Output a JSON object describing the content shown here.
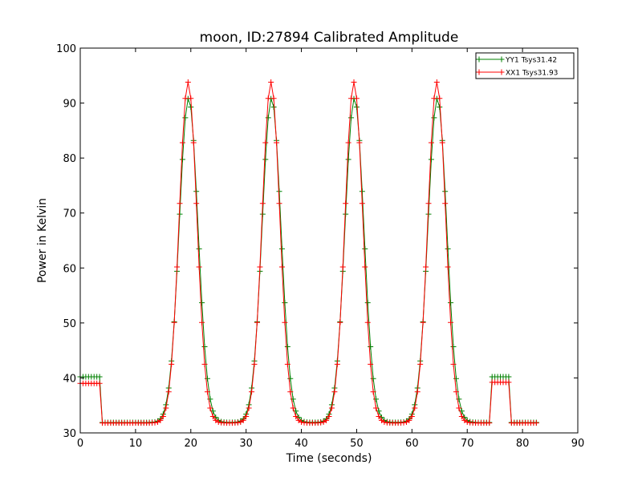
{
  "chart_data": {
    "type": "line",
    "title": "moon, ID:27894 Calibrated Amplitude",
    "xlabel": "Time (seconds)",
    "ylabel": "Power in Kelvin",
    "xlim": [
      0,
      90
    ],
    "ylim": [
      30,
      100
    ],
    "x_ticks": [
      0,
      10,
      20,
      30,
      40,
      50,
      60,
      70,
      80,
      90
    ],
    "y_ticks": [
      30,
      40,
      50,
      60,
      70,
      80,
      90,
      100
    ],
    "grid": false,
    "legend_position": "top-right",
    "sample_interval_s": 0.5,
    "series": [
      {
        "name": "YY1 Tsys31.42",
        "color": "#008000",
        "marker": "plus",
        "segments": [
          {
            "start": 0.0,
            "end": 4.0,
            "level": 40.2
          },
          {
            "start": 4.0,
            "end": 74.5,
            "level": 31.9
          },
          {
            "start": 74.5,
            "end": 78.0,
            "level": 40.2
          },
          {
            "start": 78.0,
            "end": 82.5,
            "level": 31.9
          }
        ],
        "peaks": [
          {
            "center": 19.6,
            "amplitude": 59.0,
            "sigma": 1.7
          },
          {
            "center": 34.6,
            "amplitude": 59.0,
            "sigma": 1.7
          },
          {
            "center": 49.6,
            "amplitude": 59.0,
            "sigma": 1.7
          },
          {
            "center": 64.6,
            "amplitude": 59.0,
            "sigma": 1.7
          }
        ]
      },
      {
        "name": "XX1 Tsys31.93",
        "color": "#ff0000",
        "marker": "plus",
        "segments": [
          {
            "start": 0.0,
            "end": 4.0,
            "level": 39.0
          },
          {
            "start": 4.0,
            "end": 74.5,
            "level": 31.8
          },
          {
            "start": 74.5,
            "end": 78.0,
            "level": 39.2
          },
          {
            "start": 78.0,
            "end": 82.5,
            "level": 31.8
          }
        ],
        "peaks": [
          {
            "center": 19.5,
            "amplitude": 62.0,
            "sigma": 1.6
          },
          {
            "center": 34.5,
            "amplitude": 62.0,
            "sigma": 1.6
          },
          {
            "center": 49.5,
            "amplitude": 62.0,
            "sigma": 1.6
          },
          {
            "center": 64.5,
            "amplitude": 62.0,
            "sigma": 1.6
          }
        ]
      }
    ]
  }
}
